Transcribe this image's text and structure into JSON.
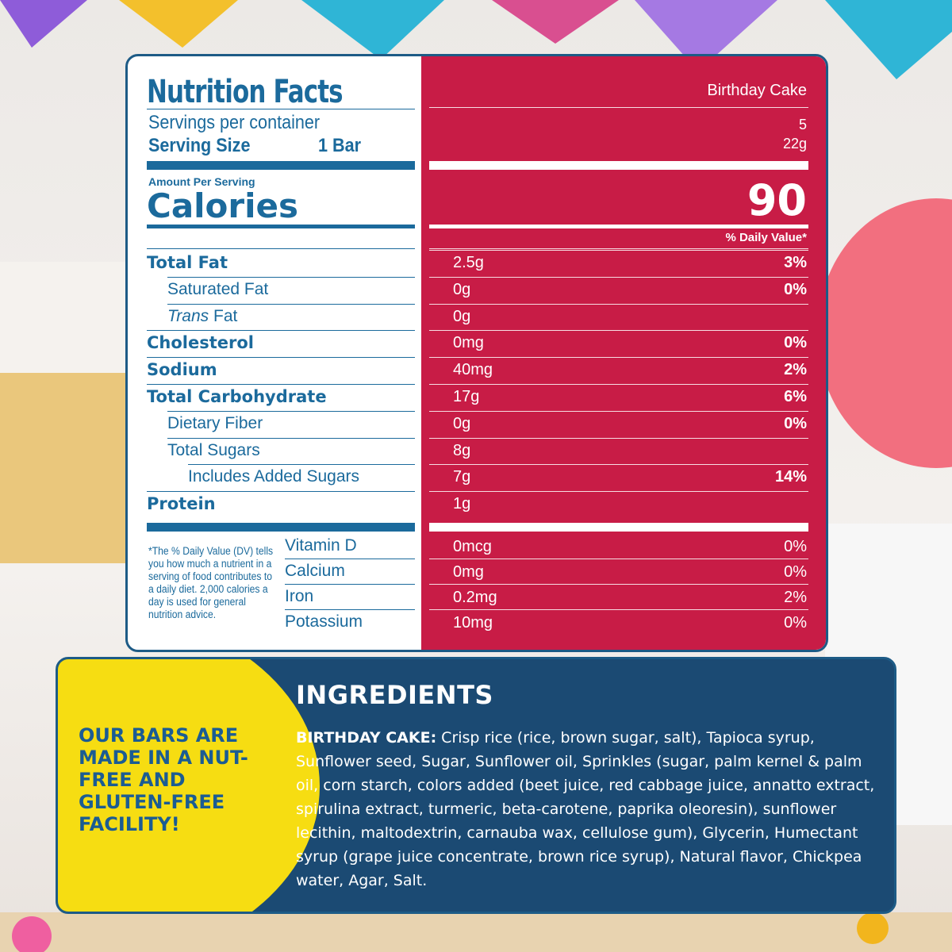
{
  "nutrition": {
    "title": "Nutrition Facts",
    "flavor": "Birthday Cake",
    "servings_label": "Servings per container",
    "servings": "5",
    "serving_size_label": "Serving Size",
    "serving_size_unit": "1 Bar",
    "serving_size": "22g",
    "amount_per_serving": "Amount Per Serving",
    "calories_label": "Calories",
    "calories": "90",
    "daily_value_header": "% Daily Value*",
    "rows": [
      {
        "label": "Total Fat",
        "amount": "2.5g",
        "dv": "3%",
        "level": 0
      },
      {
        "label": "Saturated Fat",
        "amount": "0g",
        "dv": "0%",
        "level": 1
      },
      {
        "label_italic": "Trans",
        "label": "Fat",
        "amount": "0g",
        "level": 1
      },
      {
        "label": "Cholesterol",
        "amount": "0mg",
        "dv": "0%",
        "level": 0
      },
      {
        "label": "Sodium",
        "amount": "40mg",
        "dv": "2%",
        "level": 0
      },
      {
        "label": "Total Carbohydrate",
        "amount": "17g",
        "dv": "6%",
        "level": 0
      },
      {
        "label": "Dietary Fiber",
        "amount": "0g",
        "dv": "0%",
        "level": 1
      },
      {
        "label": "Total Sugars",
        "amount": "8g",
        "level": 1
      },
      {
        "label": "Includes Added Sugars",
        "amount": "7g",
        "dv": "14%",
        "level": 2
      },
      {
        "label": "Protein",
        "amount": "1g",
        "level": 0
      }
    ],
    "footnote": "*The % Daily Value (DV) tells you how much a nutrient in a serving of food contributes to a daily diet. 2,000 calories a day is used for general nutrition advice.",
    "vitamins": [
      {
        "label": "Vitamin D",
        "amount": "0mcg",
        "dv": "0%"
      },
      {
        "label": "Calcium",
        "amount": "0mg",
        "dv": "0%"
      },
      {
        "label": "Iron",
        "amount": "0.2mg",
        "dv": "2%"
      },
      {
        "label": "Potassium",
        "amount": "10mg",
        "dv": "0%"
      }
    ]
  },
  "badge": "OUR BARS ARE MADE IN A NUT-FREE AND GLUTEN-FREE FACILITY!",
  "ingredients": {
    "title": "INGREDIENTS",
    "flavor": "BIRTHDAY CAKE:",
    "text": "Crisp rice (rice, brown sugar, salt), Tapioca syrup, Sunflower seed, Sugar, Sunflower oil, Sprinkles (sugar, palm kernel & palm oil, corn starch, colors added (beet juice, red cabbage juice, annatto extract, spirulina extract, turmeric, beta-carotene, paprika oleoresin), sunflower lecithin, maltodextrin, carnauba wax, cellulose gum), Glycerin, Humectant syrup (grape juice concentrate, brown rice syrup), Natural flavor, Chickpea water, Agar, Salt."
  }
}
